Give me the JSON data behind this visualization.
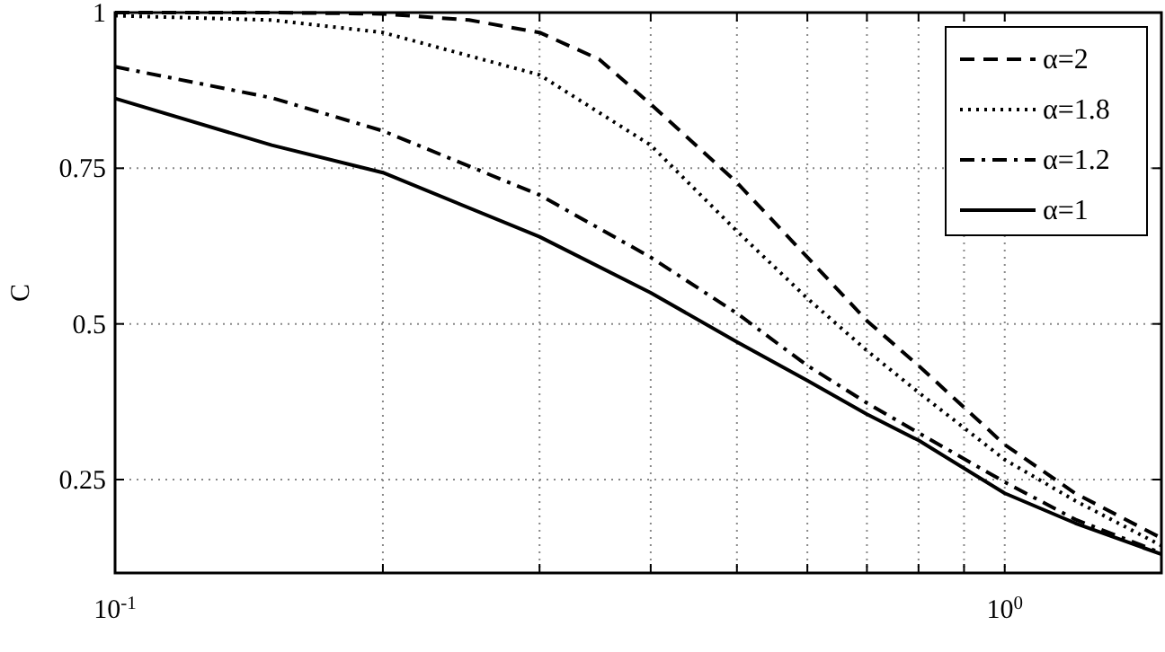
{
  "chart_data": {
    "type": "line",
    "ylabel": "C",
    "log": "x",
    "grid": true,
    "legend": "top right",
    "xlim": [
      0.1,
      1.5
    ],
    "ylim": [
      0.1,
      1
    ],
    "xticks": [
      {
        "value": 0.1,
        "label": "10$^{-1}$"
      },
      {
        "value": 0.2,
        "label": null
      },
      {
        "value": 0.3,
        "label": null
      },
      {
        "value": 0.4,
        "label": null
      },
      {
        "value": 0.5,
        "label": null
      },
      {
        "value": 0.6,
        "label": null
      },
      {
        "value": 0.7,
        "label": null
      },
      {
        "value": 0.8,
        "label": null
      },
      {
        "value": 0.9,
        "label": null
      },
      {
        "value": 1,
        "label": "10$^{0}$"
      }
    ],
    "yticks": [
      0.25,
      0.5,
      0.75,
      1
    ],
    "series": [
      {
        "name": "α=2",
        "color": "#000000",
        "line_style": "dashed",
        "x": [
          0.1,
          0.15,
          0.2,
          0.25,
          0.3,
          0.35,
          0.4,
          0.5,
          0.6,
          0.7,
          0.8,
          1,
          1.2,
          1.5
        ],
        "values": [
          1.0,
          1.0,
          0.998,
          0.988,
          0.968,
          0.925,
          0.853,
          0.727,
          0.607,
          0.505,
          0.433,
          0.306,
          0.228,
          0.156
        ]
      },
      {
        "name": "α=1.8",
        "color": "#000000",
        "line_style": "dotted",
        "x": [
          0.1,
          0.15,
          0.2,
          0.3,
          0.4,
          0.5,
          0.6,
          0.7,
          0.8,
          1,
          1.2,
          1.5
        ],
        "values": [
          0.995,
          0.988,
          0.968,
          0.9,
          0.787,
          0.649,
          0.541,
          0.457,
          0.39,
          0.282,
          0.216,
          0.144
        ]
      },
      {
        "name": "α=1.2",
        "color": "#000000",
        "line_style": "dashdot",
        "x": [
          0.1,
          0.15,
          0.2,
          0.3,
          0.4,
          0.5,
          0.6,
          0.7,
          0.8,
          1,
          1.2,
          1.5
        ],
        "values": [
          0.913,
          0.863,
          0.81,
          0.707,
          0.607,
          0.517,
          0.433,
          0.373,
          0.325,
          0.246,
          0.186,
          0.132
        ]
      },
      {
        "name": "α=1",
        "color": "#000000",
        "line_style": "solid",
        "x": [
          0.1,
          0.15,
          0.2,
          0.3,
          0.4,
          0.5,
          0.6,
          0.7,
          0.8,
          1,
          1.2,
          1.5
        ],
        "values": [
          0.862,
          0.787,
          0.743,
          0.64,
          0.55,
          0.471,
          0.409,
          0.355,
          0.313,
          0.228,
          0.18,
          0.13
        ]
      }
    ]
  }
}
